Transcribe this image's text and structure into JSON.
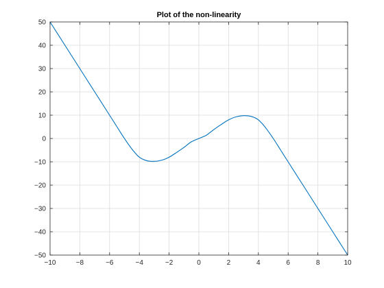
{
  "chart_data": {
    "type": "line",
    "title": "Plot of the non-linearity",
    "xlabel": "",
    "ylabel": "",
    "xlim": [
      -10,
      10
    ],
    "ylim": [
      -50,
      50
    ],
    "xticks": [
      -10,
      -8,
      -6,
      -4,
      -2,
      0,
      2,
      4,
      6,
      8,
      10
    ],
    "yticks": [
      -50,
      -40,
      -30,
      -20,
      -10,
      0,
      10,
      20,
      30,
      40,
      50
    ],
    "grid": true,
    "series": [
      {
        "x": [
          -10,
          -9,
          -8,
          -7,
          -6,
          -5.5,
          -5,
          -4.5,
          -4,
          -3.5,
          -3,
          -2.5,
          -2,
          -1.5,
          -1,
          -0.5,
          0,
          0.5,
          1,
          1.5,
          2,
          2.5,
          3,
          3.5,
          4,
          4.5,
          5,
          5.5,
          6,
          7,
          8,
          9,
          10
        ],
        "y": [
          50,
          40,
          30,
          20,
          10,
          5,
          0,
          -4.5,
          -8,
          -9.5,
          -9.8,
          -9.3,
          -8,
          -6,
          -3.8,
          -1.4,
          0,
          1.4,
          3.8,
          6,
          8,
          9.3,
          9.8,
          9.5,
          8,
          4.5,
          0,
          -5,
          -10,
          -20,
          -30,
          -40,
          -50
        ],
        "color": "#0072bd"
      }
    ]
  }
}
